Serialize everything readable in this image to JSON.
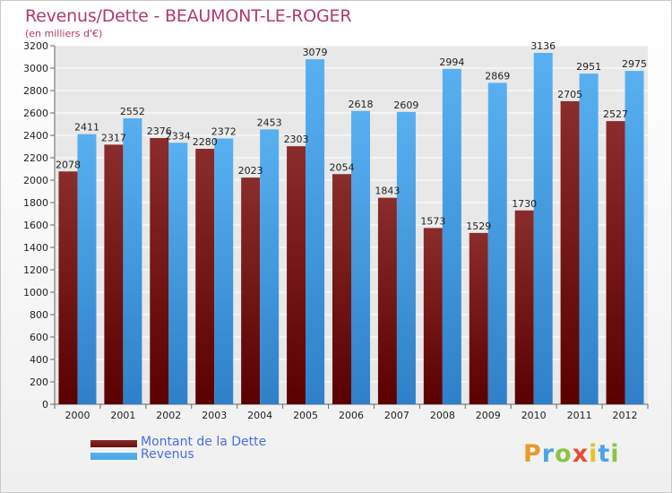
{
  "chart_data": {
    "type": "bar",
    "title": "Revenus/Dette - BEAUMONT-LE-ROGER",
    "subtitle": "(en milliers d'€)",
    "categories": [
      "2000",
      "2001",
      "2002",
      "2003",
      "2004",
      "2005",
      "2006",
      "2007",
      "2008",
      "2009",
      "2010",
      "2011",
      "2012"
    ],
    "series": [
      {
        "name": "Montant de la Dette",
        "color": "#6b0d0d",
        "values": [
          2078,
          2317,
          2376,
          2280,
          2023,
          2303,
          2054,
          1843,
          1573,
          1529,
          1730,
          2705,
          2527
        ],
        "labels": [
          "2078",
          "2317",
          "2376",
          "2280",
          "2023",
          "2303",
          "2054",
          "1843",
          "1573",
          "1529",
          "1730",
          "2705",
          "2527"
        ]
      },
      {
        "name": "Revenus",
        "color": "#4aa3e8",
        "values": [
          2411,
          2552,
          2334,
          2372,
          2453,
          3079,
          2618,
          2609,
          2994,
          2869,
          3136,
          2951,
          2975
        ],
        "labels": [
          "2411",
          "2552",
          "2334",
          "2372",
          "2453",
          "3079",
          "2618",
          "2609",
          "2994",
          "2869",
          "3136",
          "2951",
          "2975"
        ]
      }
    ],
    "yticks": [
      0,
      200,
      400,
      600,
      800,
      1000,
      1200,
      1400,
      1600,
      1800,
      2000,
      2200,
      2400,
      2600,
      2800,
      3000,
      3200
    ],
    "ylim": [
      0,
      3200
    ],
    "grid": true,
    "legend_position": "bottom-left"
  },
  "logo": {
    "text": "Proxiti",
    "letters": [
      "P",
      "r",
      "o",
      "x",
      "i",
      "t",
      "i"
    ],
    "colors": [
      "#e89a2c",
      "#4aa3e8",
      "#8bc34a",
      "#e84a3a",
      "#e8c02c",
      "#4aa3e8",
      "#8bc34a"
    ]
  }
}
